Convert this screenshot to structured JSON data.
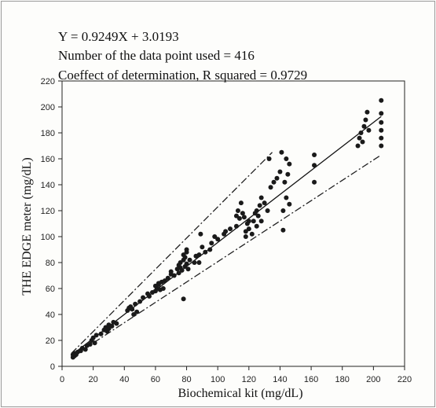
{
  "chart_data": {
    "type": "scatter",
    "title": "",
    "annotations": [
      "Y = 0.9249X + 3.0193",
      "Number of the data point used = 416",
      "Coeffect of determination, R squared = 0.9729"
    ],
    "xlabel": "Biochemical kit (mg/dL)",
    "ylabel": "THE EDGE meter (mg/dL)",
    "xlim": [
      0,
      220
    ],
    "ylim": [
      0,
      220
    ],
    "x_ticks": [
      0,
      20,
      40,
      60,
      80,
      100,
      120,
      140,
      160,
      180,
      200,
      220
    ],
    "y_ticks": [
      0,
      20,
      40,
      60,
      80,
      100,
      120,
      140,
      160,
      180,
      200,
      220
    ],
    "grid": false,
    "legend": "none",
    "regression": {
      "slope": 0.9249,
      "intercept": 3.0193
    },
    "bounds": {
      "upper": [
        [
          6,
          10
        ],
        [
          135,
          165
        ]
      ],
      "lower": [
        [
          6,
          7
        ],
        [
          205,
          163
        ]
      ]
    },
    "marker_color": "#1a1a1a",
    "series": [
      {
        "values": [
          [
            7,
            7
          ],
          [
            7,
            9
          ],
          [
            8,
            8
          ],
          [
            8,
            10
          ],
          [
            9,
            9
          ],
          [
            10,
            11
          ],
          [
            12,
            12
          ],
          [
            13,
            14
          ],
          [
            15,
            13
          ],
          [
            16,
            16
          ],
          [
            18,
            17
          ],
          [
            19,
            20
          ],
          [
            20,
            22
          ],
          [
            21,
            18
          ],
          [
            22,
            24
          ],
          [
            25,
            25
          ],
          [
            27,
            28
          ],
          [
            28,
            30
          ],
          [
            29,
            27
          ],
          [
            30,
            29
          ],
          [
            30,
            32
          ],
          [
            32,
            31
          ],
          [
            33,
            34
          ],
          [
            35,
            33
          ],
          [
            42,
            43
          ],
          [
            43,
            45
          ],
          [
            44,
            46
          ],
          [
            45,
            44
          ],
          [
            46,
            40
          ],
          [
            47,
            48
          ],
          [
            48,
            42
          ],
          [
            50,
            50
          ],
          [
            52,
            53
          ],
          [
            55,
            56
          ],
          [
            56,
            54
          ],
          [
            58,
            57
          ],
          [
            60,
            62
          ],
          [
            60,
            58
          ],
          [
            61,
            60
          ],
          [
            62,
            63
          ],
          [
            62,
            64
          ],
          [
            63,
            59
          ],
          [
            64,
            65
          ],
          [
            65,
            60
          ],
          [
            66,
            66
          ],
          [
            68,
            68
          ],
          [
            70,
            71
          ],
          [
            70,
            73
          ],
          [
            72,
            70
          ],
          [
            74,
            75
          ],
          [
            75,
            72
          ],
          [
            75,
            78
          ],
          [
            76,
            76
          ],
          [
            76,
            80
          ],
          [
            77,
            74
          ],
          [
            78,
            52
          ],
          [
            78,
            82
          ],
          [
            78,
            86
          ],
          [
            79,
            77
          ],
          [
            79,
            84
          ],
          [
            80,
            79
          ],
          [
            80,
            88
          ],
          [
            80,
            90
          ],
          [
            81,
            75
          ],
          [
            82,
            82
          ],
          [
            85,
            80
          ],
          [
            86,
            85
          ],
          [
            88,
            80
          ],
          [
            88,
            86
          ],
          [
            89,
            102
          ],
          [
            90,
            92
          ],
          [
            92,
            88
          ],
          [
            95,
            90
          ],
          [
            96,
            95
          ],
          [
            98,
            100
          ],
          [
            100,
            98
          ],
          [
            104,
            102
          ],
          [
            105,
            104
          ],
          [
            108,
            106
          ],
          [
            112,
            108
          ],
          [
            112,
            116
          ],
          [
            113,
            120
          ],
          [
            114,
            114
          ],
          [
            115,
            126
          ],
          [
            116,
            118
          ],
          [
            117,
            115
          ],
          [
            118,
            100
          ],
          [
            118,
            104
          ],
          [
            119,
            110
          ],
          [
            120,
            112
          ],
          [
            120,
            106
          ],
          [
            122,
            102
          ],
          [
            123,
            112
          ],
          [
            124,
            118
          ],
          [
            125,
            120
          ],
          [
            125,
            108
          ],
          [
            126,
            116
          ],
          [
            127,
            124
          ],
          [
            128,
            130
          ],
          [
            128,
            112
          ],
          [
            130,
            126
          ],
          [
            132,
            120
          ],
          [
            133,
            160
          ],
          [
            134,
            138
          ],
          [
            136,
            142
          ],
          [
            138,
            145
          ],
          [
            140,
            150
          ],
          [
            141,
            165
          ],
          [
            142,
            120
          ],
          [
            142,
            105
          ],
          [
            143,
            142
          ],
          [
            144,
            130
          ],
          [
            144,
            160
          ],
          [
            145,
            148
          ],
          [
            146,
            125
          ],
          [
            146,
            156
          ],
          [
            162,
            142
          ],
          [
            162,
            155
          ],
          [
            162,
            163
          ],
          [
            190,
            170
          ],
          [
            191,
            176
          ],
          [
            192,
            180
          ],
          [
            193,
            173
          ],
          [
            194,
            185
          ],
          [
            195,
            190
          ],
          [
            196,
            196
          ],
          [
            197,
            182
          ],
          [
            205,
            170
          ],
          [
            205,
            176
          ],
          [
            205,
            182
          ],
          [
            205,
            188
          ],
          [
            205,
            195
          ],
          [
            205,
            205
          ]
        ]
      }
    ]
  }
}
